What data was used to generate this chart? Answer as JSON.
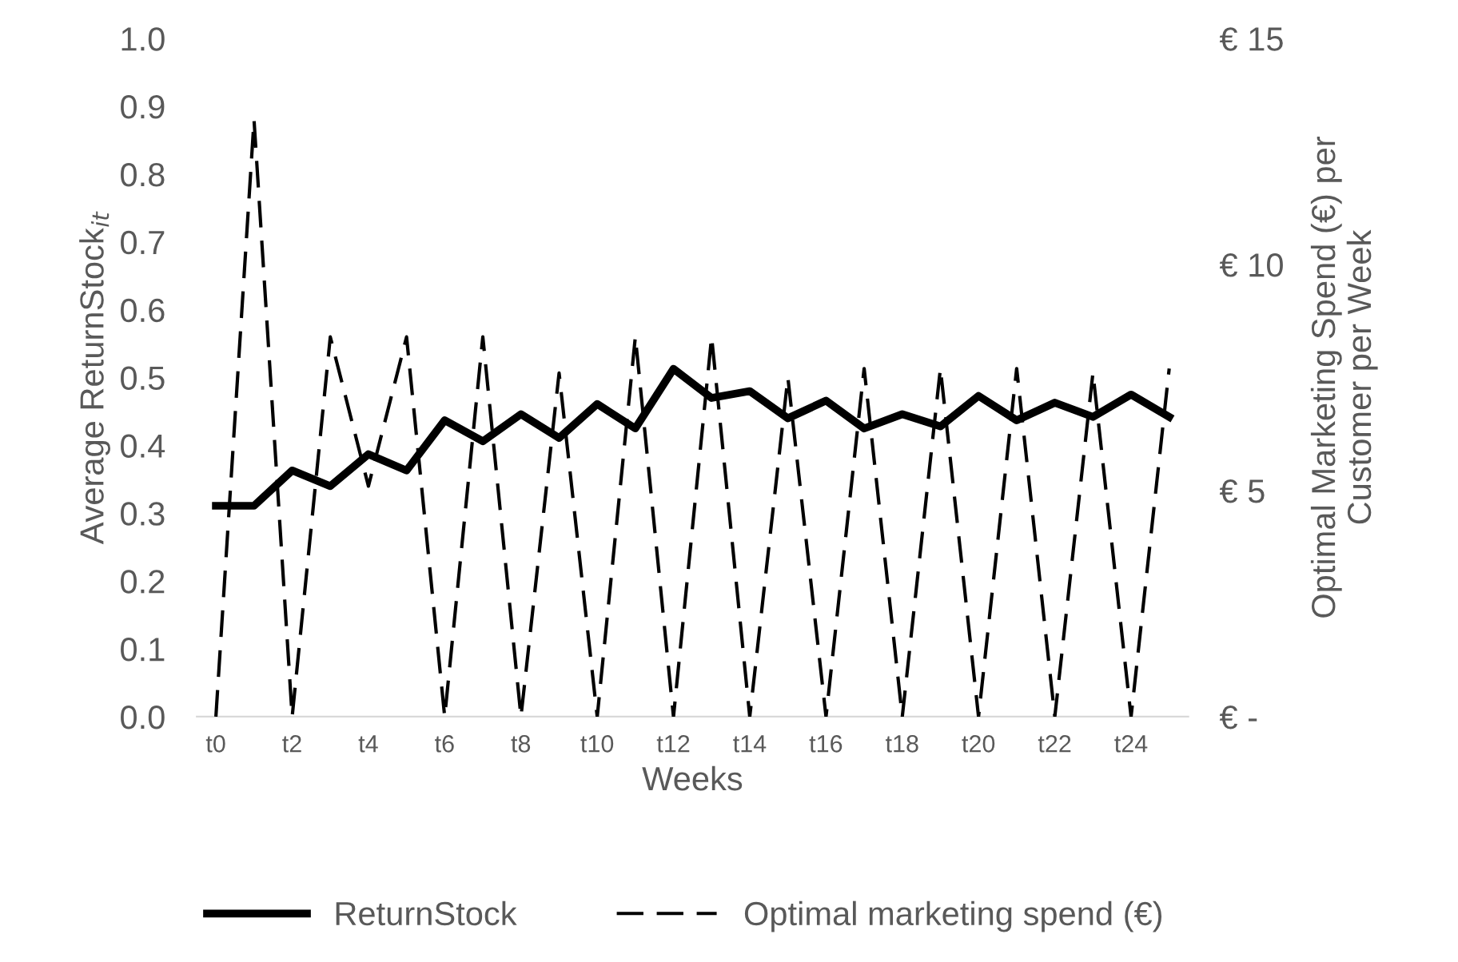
{
  "chart_data": {
    "type": "line",
    "xlabel": "Weeks",
    "ylabel": "Average ReturnStock$_{it}$",
    "y2label": "Optimal Marketing Spend (€) per\nCustomer per Week",
    "categories": [
      "t0",
      null,
      "t2",
      null,
      "t4",
      null,
      "t6",
      null,
      "t8",
      null,
      "t10",
      null,
      "t12",
      null,
      "t14",
      null,
      "t16",
      null,
      "t18",
      null,
      "t20",
      null,
      "t22",
      null,
      "t24",
      null
    ],
    "series": [
      {
        "name": "ReturnStock",
        "color": "#000000",
        "line_style": "solid",
        "values": [
          0.311,
          0.311,
          0.363,
          0.34,
          0.387,
          0.363,
          0.437,
          0.406,
          0.446,
          0.411,
          0.461,
          0.425,
          0.513,
          0.47,
          0.48,
          0.44,
          0.466,
          0.425,
          0.446,
          0.428,
          0.473,
          0.437,
          0.463,
          0.442,
          0.475,
          0.442
        ]
      },
      {
        "name": "Optimal marketing spend (€)",
        "color": "#000000",
        "line_style": "dashed",
        "axis": "y2",
        "values": [
          0,
          13.2,
          0,
          8.4,
          5.1,
          8.4,
          0,
          8.4,
          0,
          7.6,
          0,
          8.4,
          0,
          8.4,
          0,
          7.5,
          0,
          7.7,
          0,
          7.7,
          0,
          7.7,
          0,
          7.6,
          0,
          7.7
        ]
      }
    ],
    "ylim": [
      0,
      1.0
    ],
    "yticks": [
      {
        "value": 0,
        "label": "0.0"
      },
      0.1,
      0.2,
      0.3,
      0.4,
      0.5,
      0.6,
      0.7,
      0.8,
      0.9,
      {
        "value": 1,
        "label": "1.0"
      }
    ],
    "y2lim": [
      0,
      15
    ],
    "y2ticks": [
      {
        "value": 0,
        "label": "€ -"
      },
      {
        "value": 5,
        "label": "€ 5"
      },
      {
        "value": 10,
        "label": "€ 10"
      },
      {
        "value": 15,
        "label": "€ 15"
      }
    ],
    "grid": false,
    "legend": "bottom",
    "marker": "none"
  }
}
